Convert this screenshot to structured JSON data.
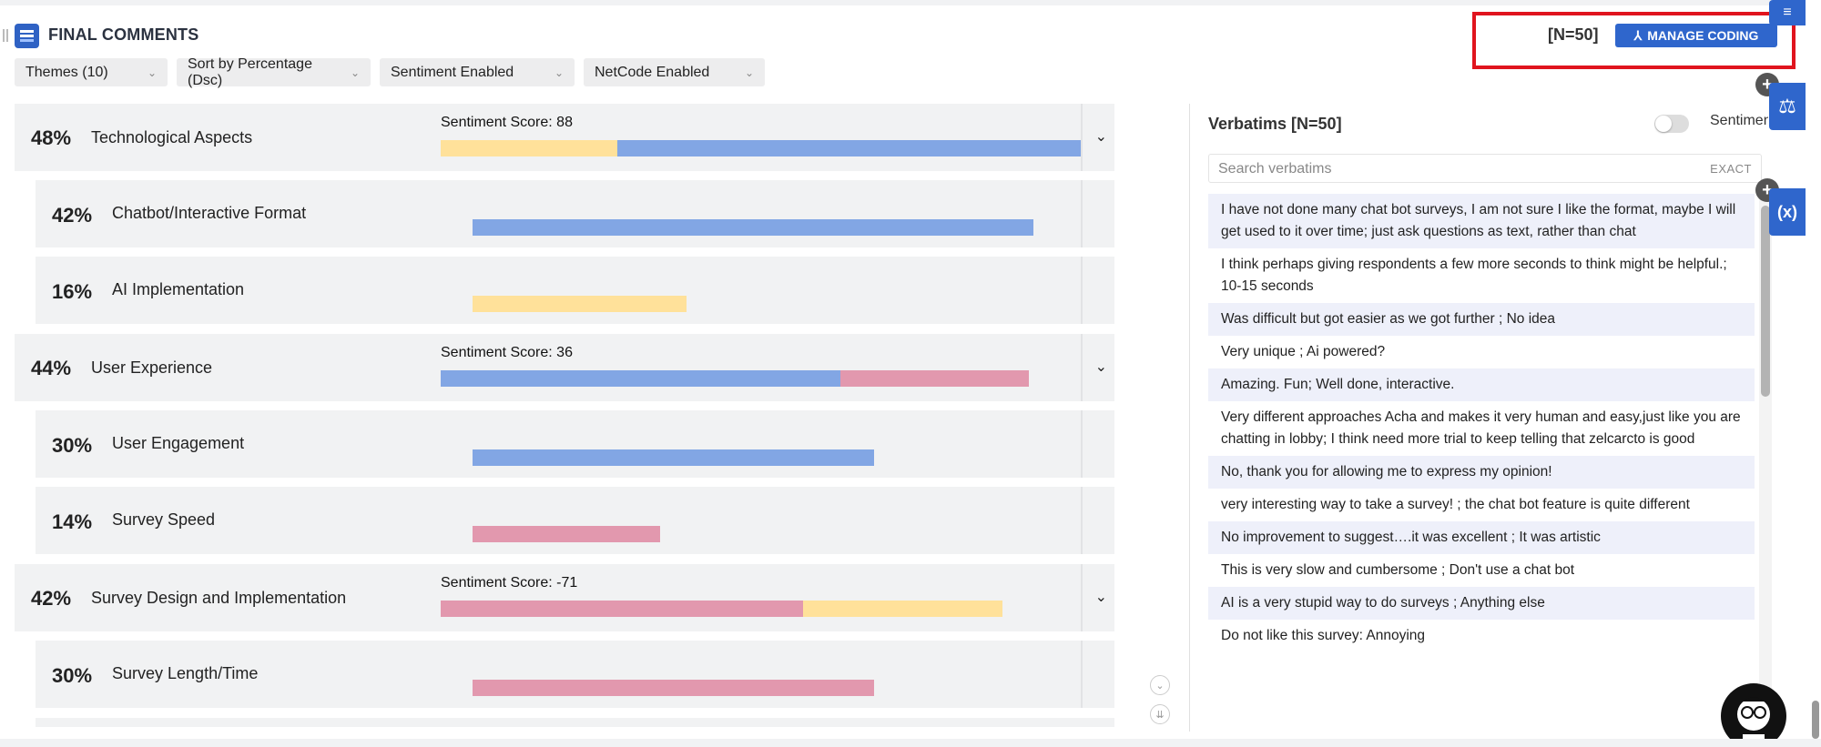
{
  "header": {
    "title": "FINAL COMMENTS",
    "n_label": "[N=50]",
    "manage_coding_label": "MANAGE CODING"
  },
  "filters": [
    {
      "label": "Themes (10)"
    },
    {
      "label": "Sort by Percentage (Dsc)"
    },
    {
      "label": "Sentiment Enabled"
    },
    {
      "label": "NetCode Enabled"
    }
  ],
  "themes": [
    {
      "pct": "48%",
      "label": "Technological Aspects",
      "sentiment_score": "Sentiment Score: 88",
      "bar": [
        {
          "color": "#ffe19a",
          "fraction": 0.275
        },
        {
          "color": "#82a6e4",
          "fraction": 0.725
        }
      ]
    },
    {
      "pct": "42%",
      "label": "Chatbot/Interactive Format",
      "bar": [
        {
          "color": "#82a6e4",
          "fraction": 1.0
        }
      ]
    },
    {
      "pct": "16%",
      "label": "AI Implementation",
      "bar": [
        {
          "color": "#ffe19a",
          "fraction": 1.0
        }
      ]
    },
    {
      "pct": "44%",
      "label": "User Experience",
      "sentiment_score": "Sentiment Score: 36",
      "bar": [
        {
          "color": "#82a6e4",
          "fraction": 0.68
        },
        {
          "color": "#e298ae",
          "fraction": 0.32
        }
      ]
    },
    {
      "pct": "30%",
      "label": "User Engagement",
      "bar": [
        {
          "color": "#82a6e4",
          "fraction": 1.0
        }
      ]
    },
    {
      "pct": "14%",
      "label": "Survey Speed",
      "bar": [
        {
          "color": "#e298ae",
          "fraction": 1.0
        }
      ]
    },
    {
      "pct": "42%",
      "label": "Survey Design and Implementation",
      "sentiment_score": "Sentiment Score: -71",
      "bar": [
        {
          "color": "#e298ae",
          "fraction": 0.645
        },
        {
          "color": "#ffe19a",
          "fraction": 0.355
        }
      ]
    },
    {
      "pct": "30%",
      "label": "Survey Length/Time",
      "bar": [
        {
          "color": "#e298ae",
          "fraction": 1.0
        }
      ]
    }
  ],
  "verbatims": {
    "title": "Verbatims [N=50]",
    "sentiment_toggle_label": "Sentiment",
    "search_placeholder": "Search verbatims",
    "exact_label": "EXACT",
    "items": [
      "I have not done many chat bot surveys, I am not sure I like the format, maybe I will get used to it over time; just ask questions as text, rather than chat",
      "I think perhaps giving respondents a few more seconds to think might be helpful.; 10-15 seconds",
      "Was difficult but got easier as we got further ; No idea",
      "Very unique ; Ai powered?",
      "Amazing. Fun; Well done, interactive.",
      "Very different approaches Acha and makes it very human and easy,just like you are chatting in lobby; I think need more trial to keep telling that zelcarcto is good",
      "No, thank you for allowing me to express my opinion!",
      "very interesting way to take a survey! ; the chat bot feature is quite different",
      "No improvement to suggest….it was excellent ; It was artistic",
      "This is very slow and cumbersome ; Don't use a chat bot",
      "AI is a very stupid way to do surveys ; Anything else",
      "Do not like this survey: Annoying"
    ]
  },
  "colors": {
    "accent": "#2f66cc",
    "positive": "#82a6e4",
    "neutral": "#ffe19a",
    "negative": "#e298ae",
    "highlight": "#e0141e"
  }
}
